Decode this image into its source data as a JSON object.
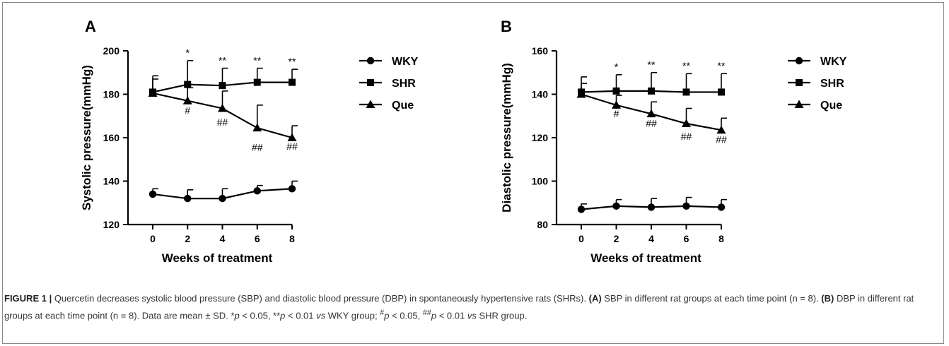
{
  "chart_data": [
    {
      "type": "line",
      "panel_label": "A",
      "xlabel": "Weeks of treatment",
      "ylabel": "Systolic pressure(mmHg)",
      "x": [
        0,
        2,
        4,
        6,
        8
      ],
      "xlim": [
        0,
        8
      ],
      "ylim": [
        120,
        200
      ],
      "yticks": [
        120,
        140,
        160,
        180,
        200
      ],
      "grid": false,
      "legend_position": "right",
      "series": [
        {
          "name": "WKY",
          "marker": "circle",
          "values": [
            134,
            132,
            132,
            135.5,
            136.5
          ],
          "sd": [
            2.5,
            4,
            4.5,
            2.5,
            3.5
          ]
        },
        {
          "name": "SHR",
          "marker": "square",
          "values": [
            181,
            184.5,
            184,
            185.5,
            185.5
          ],
          "sd": [
            7.5,
            11,
            8,
            6.5,
            6
          ]
        },
        {
          "name": "Que",
          "marker": "triangle",
          "values": [
            180.5,
            177,
            173.5,
            164.5,
            160
          ],
          "sd": [
            6.5,
            6,
            8,
            10.5,
            5.5
          ]
        }
      ],
      "annotations": [
        {
          "x": 2,
          "text": "*",
          "y": 197.5,
          "pos": "above"
        },
        {
          "x": 4,
          "text": "**",
          "y": 194,
          "pos": "above"
        },
        {
          "x": 6,
          "text": "**",
          "y": 194,
          "pos": "above"
        },
        {
          "x": 8,
          "text": "**",
          "y": 193.5,
          "pos": "above"
        },
        {
          "x": 2,
          "text": "#",
          "y": 171,
          "pos": "below"
        },
        {
          "x": 4,
          "text": "##",
          "y": 165.5,
          "pos": "below"
        },
        {
          "x": 6,
          "text": "##",
          "y": 154,
          "pos": "below"
        },
        {
          "x": 8,
          "text": "##",
          "y": 154.5,
          "pos": "below"
        }
      ]
    },
    {
      "type": "line",
      "panel_label": "B",
      "xlabel": "Weeks of treatment",
      "ylabel": "Diastolic pressure(mmHg)",
      "x": [
        0,
        2,
        4,
        6,
        8
      ],
      "xlim": [
        0,
        8
      ],
      "ylim": [
        80,
        160
      ],
      "yticks": [
        80,
        100,
        120,
        140,
        160
      ],
      "grid": false,
      "legend_position": "right",
      "series": [
        {
          "name": "WKY",
          "marker": "circle",
          "values": [
            87,
            88.5,
            88,
            88.5,
            88
          ],
          "sd": [
            2.5,
            3,
            4,
            4,
            3.5
          ]
        },
        {
          "name": "SHR",
          "marker": "square",
          "values": [
            141,
            141.5,
            141.5,
            141,
            141
          ],
          "sd": [
            7,
            7.5,
            8.5,
            8.5,
            8.5
          ]
        },
        {
          "name": "Que",
          "marker": "triangle",
          "values": [
            140,
            135,
            131,
            126.5,
            123.5
          ],
          "sd": [
            5,
            4.5,
            5.5,
            7,
            5.5
          ]
        }
      ],
      "annotations": [
        {
          "x": 2,
          "text": "*",
          "y": 151,
          "pos": "above"
        },
        {
          "x": 4,
          "text": "**",
          "y": 152,
          "pos": "above"
        },
        {
          "x": 6,
          "text": "**",
          "y": 151.5,
          "pos": "above"
        },
        {
          "x": 8,
          "text": "**",
          "y": 151.5,
          "pos": "above"
        },
        {
          "x": 2,
          "text": "#",
          "y": 129.5,
          "pos": "below"
        },
        {
          "x": 4,
          "text": "##",
          "y": 125,
          "pos": "below"
        },
        {
          "x": 6,
          "text": "##",
          "y": 119,
          "pos": "below"
        },
        {
          "x": 8,
          "text": "##",
          "y": 117.5,
          "pos": "below"
        }
      ]
    }
  ],
  "caption": {
    "title": "FIGURE 1 |",
    "text_1": " Quercetin decreases systolic blood pressure (SBP) and diastolic blood pressure (DBP) in spontaneously hypertensive rats (SHRs). ",
    "label_a": "(A)",
    "text_2": " SBP in different rat groups at each time point (n = 8). ",
    "label_b": "(B)",
    "text_3": " DBP in different rat groups at each time point (n = 8). Data are mean ± SD. *",
    "p_1": "p",
    "text_4": " < 0.05, **",
    "p_2": "p",
    "text_5": " < 0.01 ",
    "vs_1": "vs",
    "text_6": " WKY group; ",
    "hash_1": "#",
    "p_3": "p",
    "text_7": " < 0.05, ",
    "hash_2": "##",
    "p_4": "p",
    "text_8": " < 0.01 ",
    "vs_2": "vs",
    "text_9": " SHR group."
  }
}
